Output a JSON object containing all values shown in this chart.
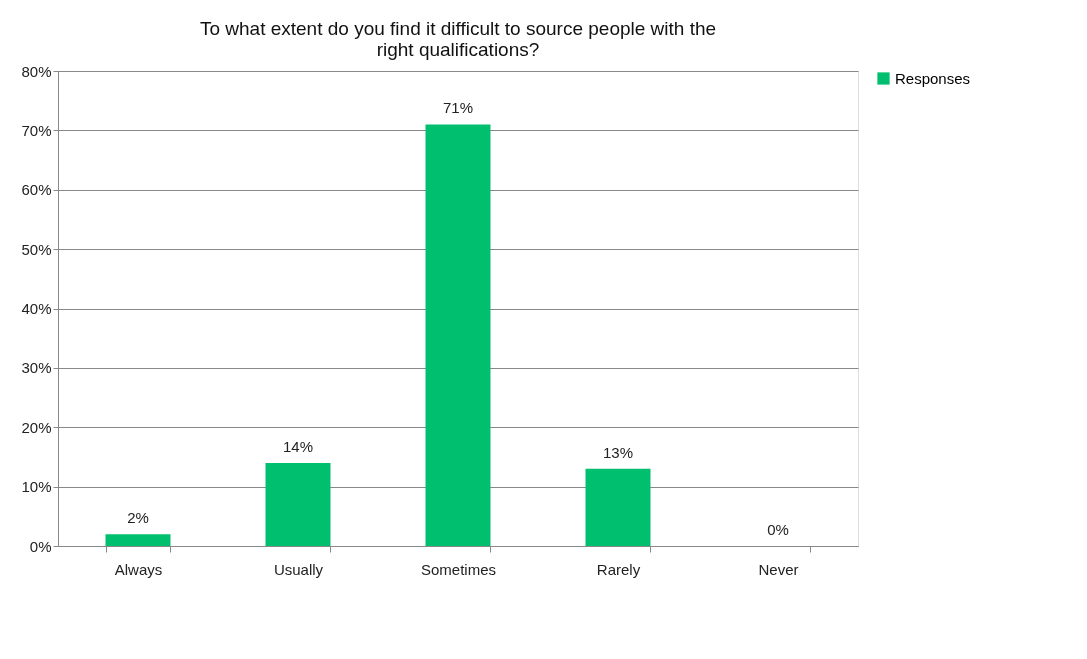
{
  "chart_data": {
    "type": "bar",
    "title": "To what extent do you find it difficult to source people with the right qualifications?",
    "categories": [
      "Always",
      "Usually",
      "Sometimes",
      "Rarely",
      "Never"
    ],
    "series": [
      {
        "name": "Responses",
        "color": "#00c070",
        "values": [
          2,
          14,
          71,
          13,
          0
        ],
        "value_labels": [
          "2%",
          "14%",
          "71%",
          "13%",
          "0%"
        ]
      }
    ],
    "ylim": [
      0,
      80
    ],
    "yticks": [
      {
        "value": 0,
        "label": "0%"
      },
      {
        "value": 10,
        "label": "10%"
      },
      {
        "value": 20,
        "label": "20%"
      },
      {
        "value": 30,
        "label": "30%"
      },
      {
        "value": 40,
        "label": "40%"
      },
      {
        "value": 50,
        "label": "50%"
      },
      {
        "value": 60,
        "label": "60%"
      },
      {
        "value": 70,
        "label": "70%"
      },
      {
        "value": 80,
        "label": "80%"
      }
    ],
    "grid": "y",
    "legend": "right"
  }
}
